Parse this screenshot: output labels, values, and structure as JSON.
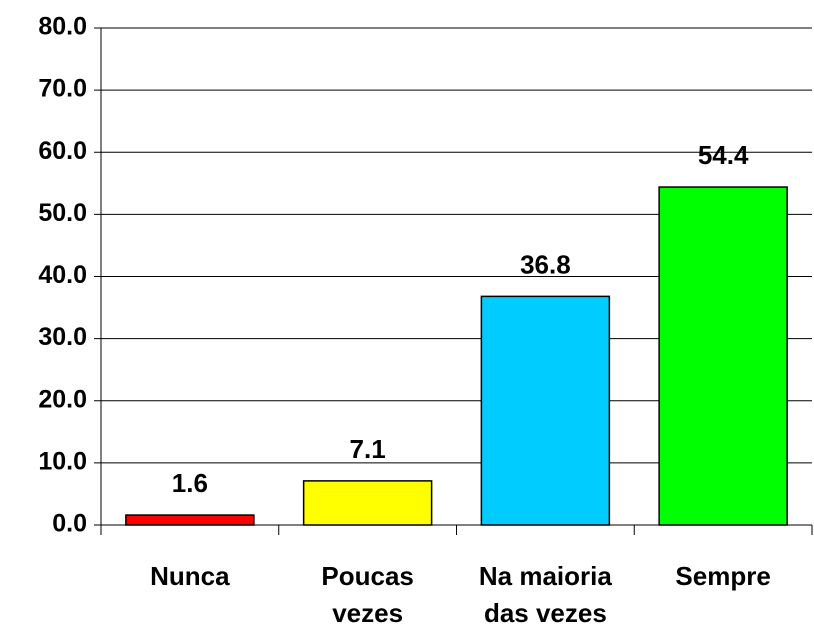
{
  "chart_data": {
    "type": "bar",
    "categories": [
      "Nunca",
      "Poucas vezes",
      "Na maioria das vezes",
      "Sempre"
    ],
    "values": [
      1.6,
      7.1,
      36.8,
      54.4
    ],
    "colors": [
      "#ff0000",
      "#ffff00",
      "#00ccff",
      "#00ff00"
    ],
    "ylim": [
      0,
      80
    ],
    "yticks": [
      {
        "value": 0,
        "label": "0.0"
      },
      {
        "value": 10,
        "label": "10.0"
      },
      {
        "value": 20,
        "label": "20.0"
      },
      {
        "value": 30,
        "label": "30.0"
      },
      {
        "value": 40,
        "label": "40.0"
      },
      {
        "value": 50,
        "label": "50.0"
      },
      {
        "value": 60,
        "label": "60.0"
      },
      {
        "value": 70,
        "label": "70.0"
      },
      {
        "value": 80,
        "label": "80.0"
      }
    ],
    "grid": true
  }
}
